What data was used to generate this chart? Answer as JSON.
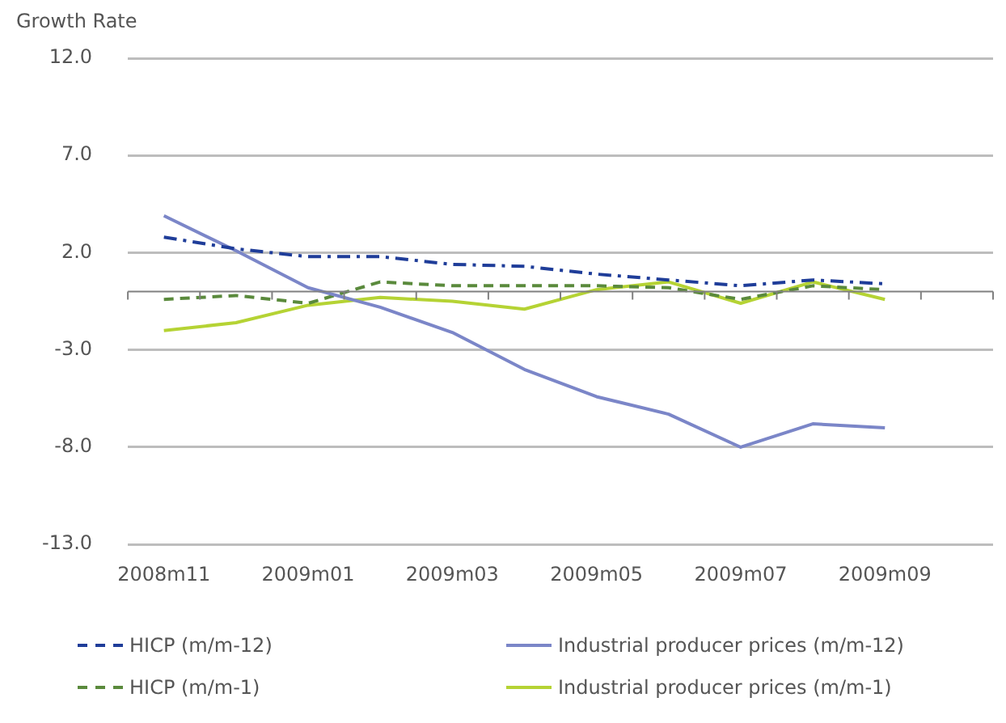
{
  "chart_data": {
    "type": "line",
    "ylabel": "Growth Rate",
    "categories": [
      "2008m11",
      null,
      "2009m01",
      null,
      "2009m03",
      null,
      "2009m05",
      null,
      "2009m07",
      null,
      "2009m09",
      null
    ],
    "series": [
      {
        "name": "HICP (m/m-12)",
        "color": "#1f3d99",
        "line_style": "dashdot",
        "values": [
          2.8,
          2.2,
          1.8,
          1.8,
          1.4,
          1.3,
          0.9,
          0.6,
          0.3,
          0.6,
          0.4,
          null
        ]
      },
      {
        "name": "Industrial producer prices (m/m-12)",
        "color": "#7b86c8",
        "line_style": "solid",
        "values": [
          3.9,
          2.1,
          0.2,
          -0.8,
          -2.1,
          -4.0,
          -5.4,
          -6.3,
          -8.0,
          -6.8,
          -7.0,
          null
        ]
      },
      {
        "name": "HICP (m/m-1)",
        "color": "#5a8a3c",
        "line_style": "dashed",
        "values": [
          -0.4,
          -0.2,
          -0.6,
          0.5,
          0.3,
          0.3,
          0.3,
          0.2,
          -0.4,
          0.3,
          0.1,
          null
        ]
      },
      {
        "name": "Industrial producer prices (m/m-1)",
        "color": "#b5d334",
        "line_style": "solid",
        "values": [
          -2.0,
          -1.6,
          -0.7,
          -0.3,
          -0.5,
          -0.9,
          0.1,
          0.5,
          -0.6,
          0.5,
          -0.4,
          null
        ]
      }
    ],
    "ylim": [
      -13,
      12
    ],
    "yticks": [
      {
        "value": -13,
        "label": "-13.0"
      },
      {
        "value": -8,
        "label": "-8.0"
      },
      {
        "value": -3,
        "label": "-3.0"
      },
      {
        "value": 2,
        "label": "2.0"
      },
      {
        "value": 7,
        "label": "7.0"
      },
      {
        "value": 12,
        "label": "12.0"
      }
    ],
    "grid": "y",
    "legend": "bottom",
    "marker": "none",
    "ref_lines": [
      {
        "axis": "y",
        "value": 0,
        "color": "#808080"
      }
    ]
  }
}
